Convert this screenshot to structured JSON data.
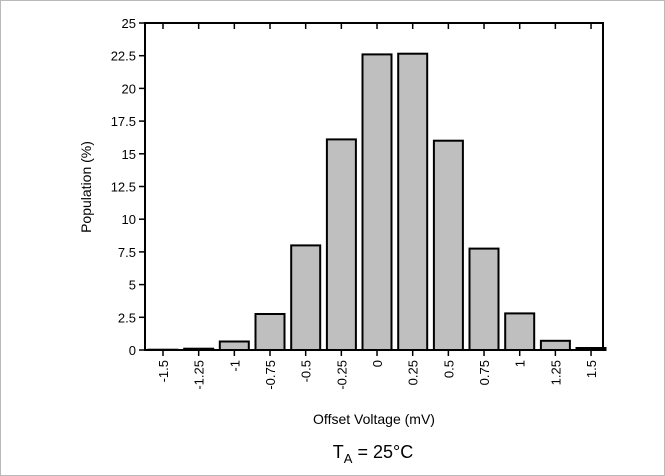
{
  "chart_data": {
    "type": "bar",
    "categories": [
      "-1.5",
      "-1.25",
      "-1",
      "-0.75",
      "-0.5",
      "-0.25",
      "0",
      "0.25",
      "0.5",
      "0.75",
      "1",
      "1.25",
      "1.5"
    ],
    "values": [
      0.02,
      0.1,
      0.65,
      2.75,
      8.0,
      16.1,
      22.6,
      22.65,
      16.0,
      7.75,
      2.8,
      0.7,
      0.15
    ],
    "xlabel": "Offset Voltage (mV)",
    "ylabel": "Population (%)",
    "ylim": [
      0,
      25
    ],
    "yticks": [
      "0",
      "2.5",
      "5",
      "7.5",
      "10",
      "12.5",
      "15",
      "17.5",
      "20",
      "22.5",
      "25"
    ],
    "grid": false,
    "colors": {
      "bar_fill": "#bfbfbf",
      "bar_stroke": "#000000"
    }
  },
  "caption": {
    "main": "T",
    "sub": "A",
    "rest": " = 25°C"
  }
}
